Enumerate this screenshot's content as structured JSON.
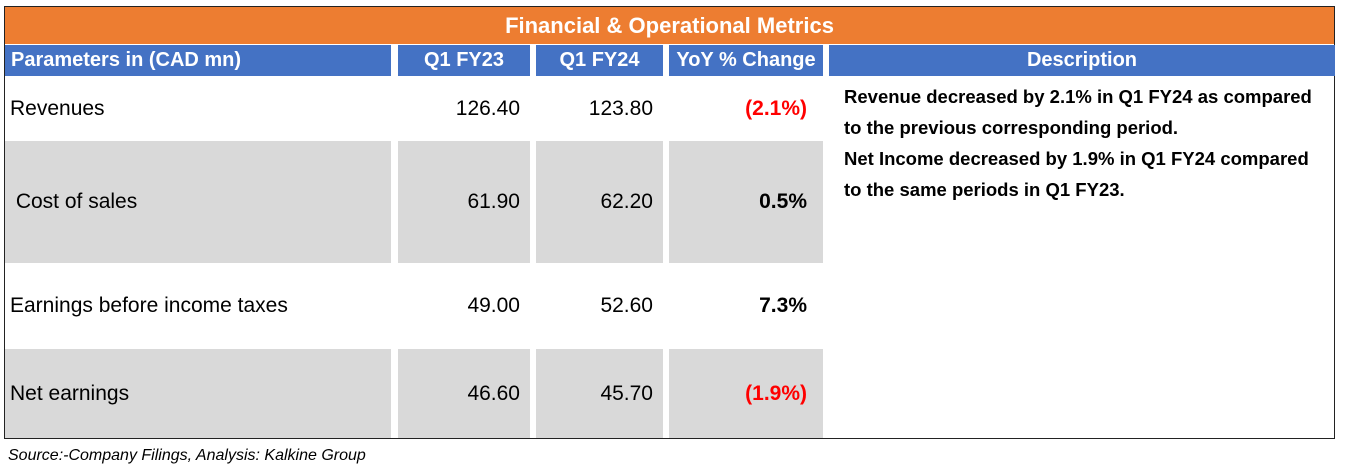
{
  "title": "Financial & Operational Metrics",
  "table": {
    "columns": [
      "Parameters in (CAD mn)",
      "Q1 FY23",
      "Q1 FY24",
      "YoY % Change",
      "Description"
    ],
    "rows": [
      {
        "label": "Revenues",
        "q1fy23": "126.40",
        "q1fy24": "123.80",
        "change": "(2.1%)",
        "change_negative": true
      },
      {
        "label": " Cost of sales",
        "q1fy23": "61.90",
        "q1fy24": "62.20",
        "change": "0.5%",
        "change_negative": false
      },
      {
        "label": "Earnings before income taxes",
        "q1fy23": "49.00",
        "q1fy24": "52.60",
        "change": "7.3%",
        "change_negative": false
      },
      {
        "label": "Net earnings",
        "q1fy23": "46.60",
        "q1fy24": "45.70",
        "change": "(1.9%)",
        "change_negative": true
      }
    ],
    "description": [
      "Revenue decreased  by 2.1% in  Q1 FY24 as compared to the previous corresponding period.",
      "Net Income decreased  by 1.9% in  Q1 FY24 compared to the same periods in Q1 FY23."
    ]
  },
  "source": "Source:-Company Filings, Analysis: Kalkine Group",
  "colors": {
    "title_bg": "#ED7D31",
    "header_bg": "#4472C4",
    "shade": "#D9D9D9",
    "negative": "#FF0000"
  }
}
